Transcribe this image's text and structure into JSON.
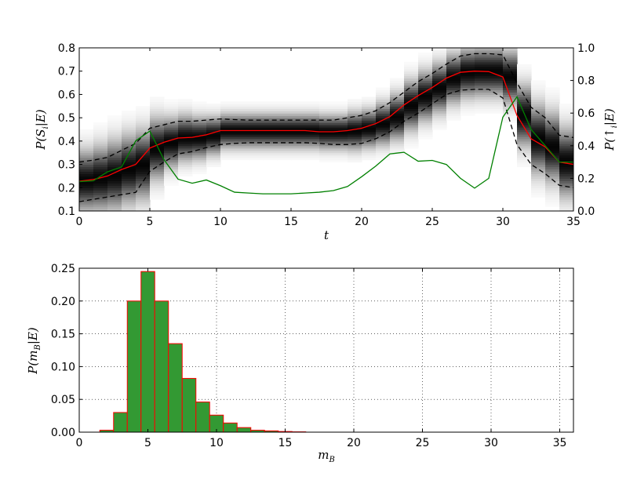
{
  "chart_data": [
    {
      "type": "heatmap",
      "xlabel": "t",
      "ylabel": "P(S_i|E)",
      "y2label": "P(↑_i|E)",
      "xlim": [
        0,
        35
      ],
      "ylim": [
        0.1,
        0.8
      ],
      "y2lim": [
        0.0,
        1.0
      ],
      "xticks": [
        "0",
        "5",
        "10",
        "15",
        "20",
        "25",
        "30",
        "35"
      ],
      "yticks": [
        "0.1",
        "0.2",
        "0.3",
        "0.4",
        "0.5",
        "0.6",
        "0.7",
        "0.8"
      ],
      "y2ticks": [
        "0.0",
        "0.2",
        "0.4",
        "0.6",
        "0.8",
        "1.0"
      ],
      "grid": false,
      "colors": {
        "mean": "#ff0000",
        "band": "#000000",
        "prob": "#008000"
      },
      "heatmap": {
        "description": "grayscale posterior density of S_i over time, centered on the mean curve",
        "x": [
          0,
          1,
          2,
          3,
          4,
          5,
          6,
          7,
          8,
          9,
          10,
          11,
          12,
          13,
          14,
          15,
          16,
          17,
          18,
          19,
          20,
          21,
          22,
          23,
          24,
          25,
          26,
          27,
          28,
          29,
          30,
          31,
          32,
          33,
          34,
          35
        ],
        "center": [
          0.23,
          0.24,
          0.255,
          0.28,
          0.3,
          0.37,
          0.395,
          0.415,
          0.415,
          0.425,
          0.445,
          0.445,
          0.445,
          0.445,
          0.445,
          0.445,
          0.445,
          0.44,
          0.44,
          0.445,
          0.455,
          0.475,
          0.505,
          0.555,
          0.595,
          0.63,
          0.67,
          0.695,
          0.7,
          0.7,
          0.675,
          0.51,
          0.41,
          0.375,
          0.31,
          0.3
        ],
        "width": [
          0.08,
          0.085,
          0.09,
          0.09,
          0.09,
          0.08,
          0.065,
          0.06,
          0.055,
          0.05,
          0.045,
          0.045,
          0.045,
          0.045,
          0.045,
          0.045,
          0.045,
          0.045,
          0.045,
          0.05,
          0.05,
          0.055,
          0.06,
          0.065,
          0.065,
          0.065,
          0.065,
          0.065,
          0.065,
          0.065,
          0.07,
          0.08,
          0.09,
          0.09,
          0.09,
          0.09
        ]
      },
      "series": [
        {
          "role": "mean",
          "axis": "left",
          "x": [
            0,
            1,
            2,
            3,
            4,
            5,
            6,
            7,
            8,
            9,
            10,
            11,
            12,
            13,
            14,
            15,
            16,
            17,
            18,
            19,
            20,
            21,
            22,
            23,
            24,
            25,
            26,
            27,
            28,
            29,
            30,
            31,
            32,
            33,
            34,
            35
          ],
          "values": [
            0.228,
            0.235,
            0.25,
            0.278,
            0.3,
            0.37,
            0.395,
            0.413,
            0.416,
            0.427,
            0.445,
            0.445,
            0.445,
            0.445,
            0.445,
            0.445,
            0.445,
            0.44,
            0.44,
            0.445,
            0.455,
            0.475,
            0.505,
            0.555,
            0.595,
            0.63,
            0.67,
            0.695,
            0.7,
            0.698,
            0.675,
            0.51,
            0.41,
            0.375,
            0.31,
            0.3
          ]
        },
        {
          "role": "upper",
          "axis": "left",
          "x": [
            0,
            1,
            2,
            3,
            4,
            5,
            6,
            7,
            8,
            9,
            10,
            11,
            12,
            13,
            14,
            15,
            16,
            17,
            18,
            19,
            20,
            21,
            22,
            23,
            24,
            25,
            26,
            27,
            28,
            29,
            30,
            31,
            32,
            33,
            34,
            35
          ],
          "values": [
            0.31,
            0.318,
            0.33,
            0.36,
            0.39,
            0.455,
            0.47,
            0.485,
            0.485,
            0.49,
            0.495,
            0.492,
            0.49,
            0.49,
            0.49,
            0.49,
            0.49,
            0.49,
            0.49,
            0.5,
            0.51,
            0.53,
            0.565,
            0.61,
            0.655,
            0.69,
            0.73,
            0.765,
            0.775,
            0.775,
            0.77,
            0.65,
            0.545,
            0.5,
            0.425,
            0.415
          ]
        },
        {
          "role": "lower",
          "axis": "left",
          "x": [
            0,
            1,
            2,
            3,
            4,
            5,
            6,
            7,
            8,
            9,
            10,
            11,
            12,
            13,
            14,
            15,
            16,
            17,
            18,
            19,
            20,
            21,
            22,
            23,
            24,
            25,
            26,
            27,
            28,
            29,
            30,
            31,
            32,
            33,
            34,
            35
          ],
          "values": [
            0.14,
            0.15,
            0.16,
            0.17,
            0.18,
            0.27,
            0.31,
            0.345,
            0.355,
            0.372,
            0.385,
            0.39,
            0.393,
            0.393,
            0.393,
            0.393,
            0.393,
            0.39,
            0.385,
            0.385,
            0.39,
            0.41,
            0.44,
            0.485,
            0.52,
            0.56,
            0.6,
            0.618,
            0.622,
            0.622,
            0.585,
            0.385,
            0.3,
            0.26,
            0.21,
            0.2
          ]
        },
        {
          "role": "prob",
          "axis": "right",
          "x": [
            0,
            1,
            2,
            3,
            4,
            5,
            6,
            7,
            8,
            9,
            10,
            11,
            12,
            13,
            14,
            15,
            16,
            17,
            18,
            19,
            20,
            21,
            22,
            23,
            24,
            25,
            26,
            27,
            28,
            29,
            30,
            31,
            32,
            33,
            34,
            35
          ],
          "values": [
            0.18,
            0.185,
            0.24,
            0.27,
            0.43,
            0.49,
            0.315,
            0.195,
            0.17,
            0.19,
            0.155,
            0.115,
            0.11,
            0.105,
            0.105,
            0.105,
            0.11,
            0.115,
            0.125,
            0.15,
            0.21,
            0.275,
            0.35,
            0.36,
            0.305,
            0.31,
            0.285,
            0.2,
            0.14,
            0.2,
            0.575,
            0.7,
            0.5,
            0.4,
            0.3,
            0.3
          ]
        }
      ]
    },
    {
      "type": "bar",
      "xlabel": "m_B",
      "ylabel": "P(m_B|E)",
      "xlim": [
        0,
        36
      ],
      "ylim": [
        0,
        0.25
      ],
      "xticks": [
        "0",
        "5",
        "10",
        "15",
        "20",
        "25",
        "30",
        "35"
      ],
      "yticks": [
        "0.00",
        "0.05",
        "0.10",
        "0.15",
        "0.20",
        "0.25"
      ],
      "grid": true,
      "colors": {
        "fill": "#339933",
        "edge": "#ff0000"
      },
      "bin_width": 1,
      "bin_start": [
        1.5,
        2.5,
        3.5,
        4.5,
        5.5,
        6.5,
        7.5,
        8.5,
        9.5,
        10.5,
        11.5,
        12.5,
        13.5,
        14.5,
        15.5
      ],
      "values": [
        0.003,
        0.03,
        0.2,
        0.245,
        0.2,
        0.135,
        0.082,
        0.046,
        0.026,
        0.014,
        0.007,
        0.003,
        0.002,
        0.001,
        0.0005
      ]
    }
  ]
}
